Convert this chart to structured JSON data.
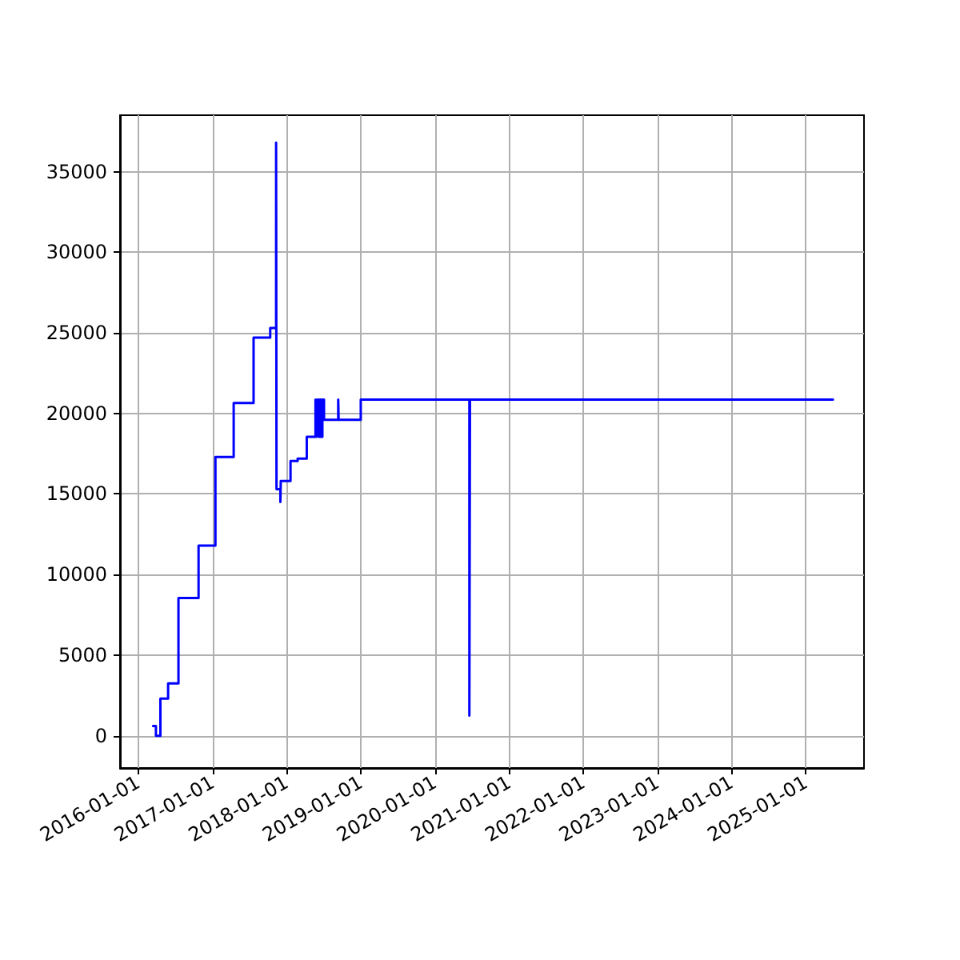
{
  "chart_data": {
    "type": "step",
    "x": [
      "2016-03-14",
      "2016-03-28",
      "2016-04-19",
      "2016-05-27",
      "2016-07-17",
      "2016-10-24",
      "2017-01-15",
      "2017-04-15",
      "2017-07-22",
      "2017-10-12",
      "2017-11-10",
      "2017-11-12",
      "2017-12-01",
      "2017-12-03",
      "2018-01-20",
      "2018-02-24",
      "2018-04-10",
      "2018-05-23",
      "2018-05-28",
      "2018-06-02",
      "2018-06-08",
      "2018-06-14",
      "2018-06-20",
      "2018-06-26",
      "2018-07-04",
      "2018-09-12",
      "2018-09-14",
      "2019-01-01",
      "2020-06-19",
      "2020-06-22",
      "2025-05-15"
    ],
    "series": [
      {
        "color": "#0000ff",
        "values": [
          600,
          0,
          2300,
          3250,
          8550,
          11800,
          17300,
          20650,
          24700,
          25300,
          36800,
          15300,
          14500,
          15800,
          17050,
          17200,
          18550,
          20850,
          18550,
          20850,
          18550,
          20850,
          18550,
          20850,
          19600,
          20850,
          19600,
          20850,
          1250,
          20850,
          20850
        ]
      }
    ],
    "xlim": [
      "2015-10-03",
      "2025-10-15"
    ],
    "xticks": [
      "2016-01-01",
      "2017-01-01",
      "2018-01-01",
      "2019-01-01",
      "2020-01-01",
      "2021-01-01",
      "2022-01-01",
      "2023-01-01",
      "2024-01-01",
      "2025-01-01"
    ],
    "ylim": [
      -2000,
      38500
    ],
    "yticks": [
      0,
      5000,
      10000,
      15000,
      20000,
      25000,
      30000,
      35000
    ],
    "grid": true,
    "marker": "none",
    "line_style": "solid"
  }
}
